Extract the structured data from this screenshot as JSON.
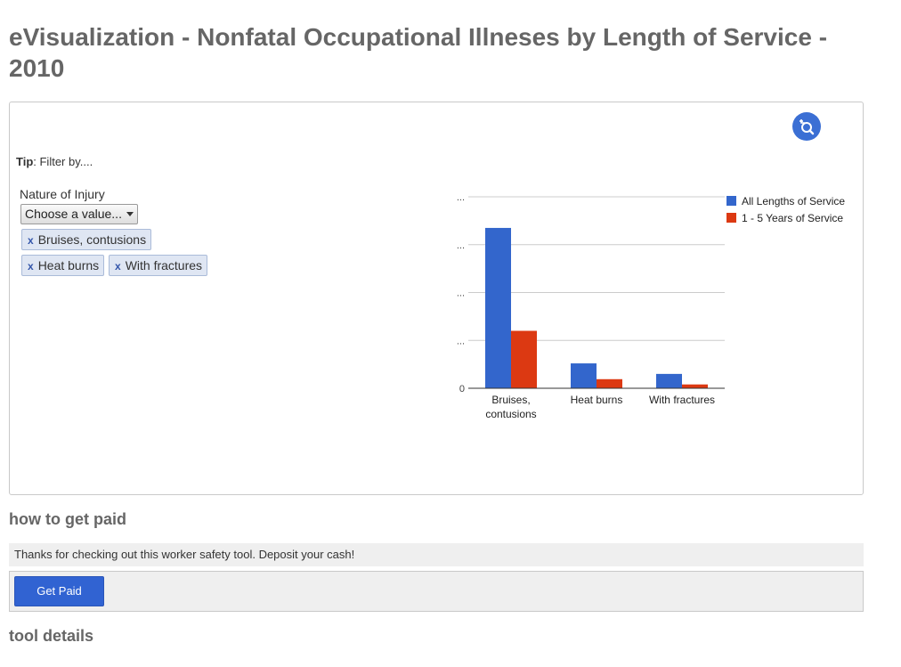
{
  "page": {
    "title": "eVisualization - Nonfatal Occupational Illneses by Length of Service - 2010"
  },
  "panel": {
    "zoom_icon": "zoom-reset-icon",
    "tip_label": "Tip",
    "tip_text": ": Filter by....",
    "filter": {
      "label": "Nature of Injury",
      "select_value": "Choose a value...",
      "chips": [
        {
          "label": "Bruises, contusions",
          "remove": "x"
        },
        {
          "label": "Heat burns",
          "remove": "x"
        },
        {
          "label": "With fractures",
          "remove": "x"
        }
      ]
    }
  },
  "chart_data": {
    "type": "bar",
    "categories": [
      "Bruises,\ncontusions",
      "Heat burns",
      "With fractures"
    ],
    "series": [
      {
        "name": "All Lengths of Service",
        "color": "#3366cc",
        "values": [
          3.35,
          0.52,
          0.3
        ]
      },
      {
        "name": "1 - 5 Years of Service",
        "color": "#dc3912",
        "values": [
          1.2,
          0.19,
          0.08
        ]
      }
    ],
    "ytick_labels": [
      "0",
      "...",
      "...",
      "...",
      "..."
    ],
    "ylim": [
      0,
      4
    ],
    "grid": true,
    "legend": "right"
  },
  "sections": {
    "how_to_get_paid": "how to get paid",
    "info_text": "Thanks for checking out this worker safety tool. Deposit your cash!",
    "button_label": "Get Paid",
    "tool_details": "tool details"
  }
}
